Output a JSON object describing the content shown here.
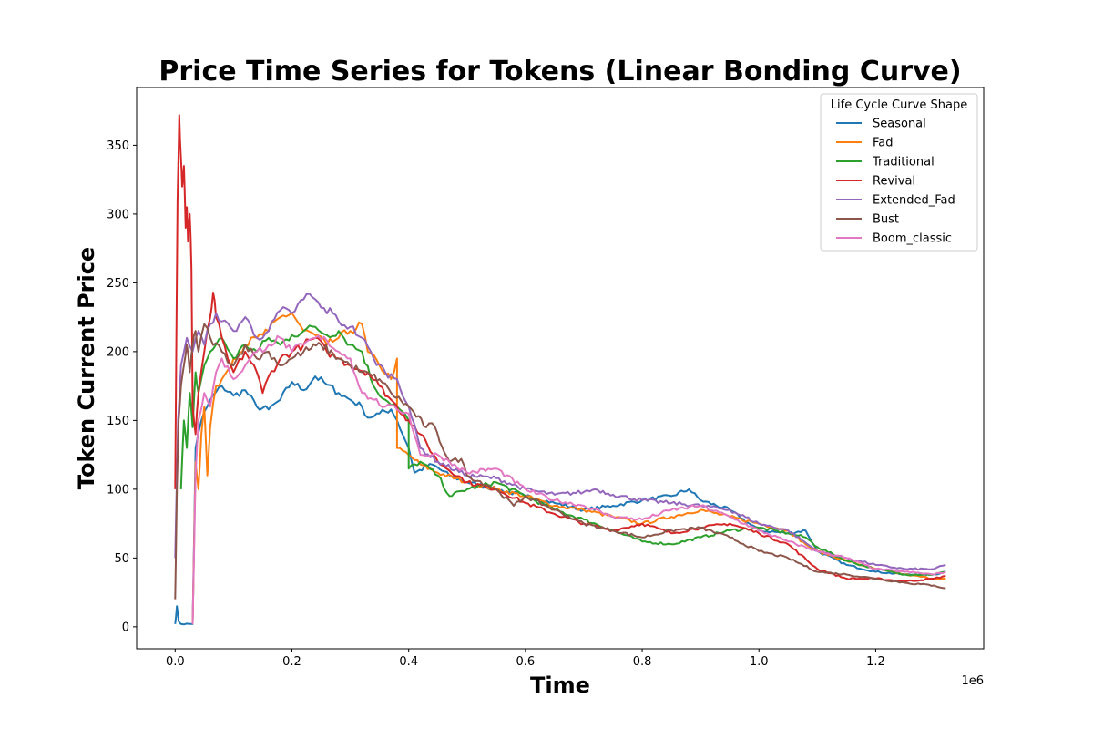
{
  "chart_data": {
    "type": "line",
    "title": "Price Time Series for Tokens (Linear Bonding Curve)",
    "xlabel": "Time",
    "ylabel": "Token Current Price",
    "x_offset_label": "1e6",
    "xlim": [
      -0.066,
      1.385
    ],
    "ylim": [
      -16,
      392
    ],
    "xticks": [
      0.0,
      0.2,
      0.4,
      0.6,
      0.8,
      1.0,
      1.2
    ],
    "xtick_labels": [
      "0.0",
      "0.2",
      "0.4",
      "0.6",
      "0.8",
      "1.0",
      "1.2"
    ],
    "yticks": [
      0,
      50,
      100,
      150,
      200,
      250,
      300,
      350
    ],
    "ytick_labels": [
      "0",
      "50",
      "100",
      "150",
      "200",
      "250",
      "300",
      "350"
    ],
    "grid": false,
    "legend": {
      "title": "Life Cycle Curve Shape",
      "placement": "top-right"
    },
    "series": [
      {
        "name": "Seasonal",
        "color": "#1f77b4",
        "x": [
          0.0,
          0.003,
          0.006,
          0.01,
          0.03,
          0.035,
          0.045,
          0.06,
          0.08,
          0.1,
          0.12,
          0.14,
          0.16,
          0.18,
          0.2,
          0.22,
          0.24,
          0.26,
          0.28,
          0.3,
          0.32,
          0.33,
          0.35,
          0.37,
          0.38,
          0.4,
          0.41,
          0.44,
          0.47,
          0.5,
          0.55,
          0.6,
          0.65,
          0.7,
          0.75,
          0.8,
          0.85,
          0.88,
          0.9,
          0.95,
          1.0,
          1.05,
          1.08,
          1.1,
          1.15,
          1.2,
          1.25,
          1.3,
          1.32
        ],
        "y": [
          2,
          15,
          4,
          2,
          2,
          130,
          150,
          165,
          175,
          168,
          172,
          160,
          158,
          165,
          178,
          172,
          182,
          176,
          170,
          165,
          160,
          152,
          155,
          158,
          150,
          130,
          112,
          118,
          110,
          105,
          100,
          95,
          90,
          85,
          88,
          92,
          95,
          100,
          92,
          85,
          70,
          68,
          70,
          55,
          45,
          40,
          38,
          38,
          40
        ]
      },
      {
        "name": "Fad",
        "color": "#ff7f0e",
        "x": [
          0.03,
          0.035,
          0.04,
          0.045,
          0.05,
          0.055,
          0.06,
          0.07,
          0.08,
          0.1,
          0.12,
          0.14,
          0.16,
          0.18,
          0.2,
          0.22,
          0.24,
          0.26,
          0.28,
          0.3,
          0.32,
          0.33,
          0.35,
          0.37,
          0.38,
          0.38,
          0.4,
          0.42,
          0.45,
          0.5,
          0.55,
          0.6,
          0.65,
          0.7,
          0.75,
          0.8,
          0.85,
          0.9,
          0.95,
          1.0,
          1.05,
          1.08,
          1.1,
          1.15,
          1.2,
          1.25,
          1.3,
          1.32
        ],
        "y": [
          2,
          120,
          100,
          140,
          160,
          110,
          145,
          175,
          180,
          195,
          205,
          210,
          215,
          225,
          228,
          215,
          212,
          205,
          210,
          215,
          220,
          200,
          190,
          180,
          195,
          130,
          125,
          118,
          112,
          105,
          100,
          95,
          88,
          85,
          80,
          75,
          80,
          85,
          80,
          75,
          70,
          60,
          55,
          48,
          42,
          38,
          35,
          35
        ]
      },
      {
        "name": "Traditional",
        "color": "#2ca02c",
        "x": [
          0.01,
          0.015,
          0.02,
          0.025,
          0.03,
          0.035,
          0.04,
          0.05,
          0.06,
          0.08,
          0.1,
          0.12,
          0.14,
          0.16,
          0.18,
          0.2,
          0.22,
          0.24,
          0.26,
          0.28,
          0.3,
          0.32,
          0.34,
          0.36,
          0.38,
          0.4,
          0.4,
          0.42,
          0.45,
          0.47,
          0.5,
          0.55,
          0.6,
          0.65,
          0.7,
          0.75,
          0.8,
          0.85,
          0.9,
          0.95,
          1.0,
          1.05,
          1.08,
          1.1,
          1.15,
          1.2,
          1.25,
          1.3,
          1.32
        ],
        "y": [
          100,
          150,
          130,
          170,
          145,
          185,
          170,
          190,
          200,
          210,
          195,
          205,
          200,
          210,
          205,
          212,
          215,
          218,
          212,
          215,
          205,
          200,
          175,
          165,
          160,
          150,
          115,
          120,
          110,
          95,
          100,
          105,
          95,
          85,
          78,
          70,
          62,
          60,
          65,
          70,
          72,
          68,
          65,
          58,
          48,
          42,
          38,
          38,
          40
        ]
      },
      {
        "name": "Revival",
        "color": "#d62728",
        "x": [
          0.0,
          0.004,
          0.007,
          0.01,
          0.012,
          0.015,
          0.018,
          0.02,
          0.022,
          0.025,
          0.028,
          0.03,
          0.035,
          0.04,
          0.05,
          0.06,
          0.065,
          0.07,
          0.08,
          0.09,
          0.1,
          0.12,
          0.14,
          0.15,
          0.16,
          0.18,
          0.2,
          0.22,
          0.24,
          0.26,
          0.28,
          0.3,
          0.33,
          0.35,
          0.37,
          0.4,
          0.42,
          0.45,
          0.5,
          0.55,
          0.6,
          0.65,
          0.7,
          0.75,
          0.8,
          0.85,
          0.9,
          0.95,
          1.0,
          1.05,
          1.1,
          1.15,
          1.2,
          1.25,
          1.3,
          1.32
        ],
        "y": [
          100,
          310,
          372,
          340,
          320,
          335,
          290,
          305,
          280,
          300,
          260,
          160,
          140,
          170,
          200,
          225,
          243,
          225,
          210,
          195,
          185,
          200,
          185,
          170,
          182,
          195,
          200,
          205,
          210,
          200,
          195,
          190,
          185,
          175,
          165,
          150,
          140,
          120,
          105,
          100,
          90,
          82,
          75,
          70,
          75,
          68,
          72,
          75,
          68,
          60,
          42,
          35,
          35,
          33,
          35,
          37
        ]
      },
      {
        "name": "Extended_Fad",
        "color": "#9467bd",
        "x": [
          0.0,
          0.005,
          0.01,
          0.02,
          0.03,
          0.04,
          0.05,
          0.06,
          0.07,
          0.08,
          0.1,
          0.12,
          0.14,
          0.16,
          0.18,
          0.2,
          0.22,
          0.23,
          0.25,
          0.27,
          0.28,
          0.3,
          0.32,
          0.34,
          0.36,
          0.38,
          0.4,
          0.42,
          0.45,
          0.5,
          0.55,
          0.6,
          0.65,
          0.7,
          0.72,
          0.75,
          0.8,
          0.85,
          0.9,
          0.95,
          1.0,
          1.05,
          1.1,
          1.15,
          1.2,
          1.25,
          1.3,
          1.32
        ],
        "y": [
          50,
          150,
          190,
          210,
          200,
          215,
          205,
          220,
          228,
          222,
          215,
          225,
          210,
          215,
          230,
          228,
          238,
          242,
          232,
          228,
          222,
          218,
          210,
          195,
          185,
          180,
          160,
          130,
          120,
          110,
          108,
          100,
          96,
          98,
          100,
          96,
          92,
          90,
          88,
          85,
          75,
          70,
          55,
          50,
          45,
          42,
          42,
          45
        ]
      },
      {
        "name": "Bust",
        "color": "#8c564b",
        "x": [
          0.0,
          0.003,
          0.006,
          0.01,
          0.015,
          0.02,
          0.025,
          0.03,
          0.035,
          0.04,
          0.05,
          0.06,
          0.08,
          0.1,
          0.12,
          0.14,
          0.16,
          0.18,
          0.2,
          0.22,
          0.25,
          0.28,
          0.3,
          0.32,
          0.35,
          0.37,
          0.4,
          0.43,
          0.44,
          0.47,
          0.49,
          0.5,
          0.55,
          0.58,
          0.6,
          0.65,
          0.7,
          0.75,
          0.8,
          0.85,
          0.9,
          0.95,
          1.0,
          1.05,
          1.1,
          1.15,
          1.2,
          1.25,
          1.3,
          1.32
        ],
        "y": [
          20,
          100,
          150,
          175,
          190,
          205,
          185,
          205,
          215,
          200,
          220,
          210,
          200,
          190,
          205,
          195,
          200,
          190,
          195,
          200,
          205,
          195,
          190,
          185,
          180,
          170,
          160,
          145,
          148,
          120,
          122,
          110,
          100,
          88,
          95,
          85,
          75,
          70,
          65,
          70,
          72,
          65,
          55,
          50,
          40,
          38,
          35,
          32,
          30,
          28
        ]
      },
      {
        "name": "Boom_classic",
        "color": "#e377c2",
        "x": [
          0.03,
          0.035,
          0.04,
          0.05,
          0.06,
          0.07,
          0.08,
          0.1,
          0.12,
          0.14,
          0.16,
          0.18,
          0.2,
          0.22,
          0.24,
          0.26,
          0.28,
          0.3,
          0.32,
          0.34,
          0.36,
          0.38,
          0.4,
          0.42,
          0.45,
          0.47,
          0.5,
          0.55,
          0.6,
          0.65,
          0.7,
          0.75,
          0.8,
          0.85,
          0.9,
          0.95,
          1.0,
          1.05,
          1.1,
          1.15,
          1.2,
          1.25,
          1.3,
          1.32
        ],
        "y": [
          2,
          110,
          150,
          170,
          160,
          185,
          195,
          180,
          190,
          200,
          205,
          210,
          200,
          205,
          210,
          208,
          200,
          195,
          170,
          165,
          160,
          158,
          155,
          125,
          125,
          120,
          112,
          115,
          100,
          92,
          88,
          80,
          78,
          85,
          88,
          80,
          70,
          62,
          55,
          50,
          42,
          40,
          38,
          40
        ]
      }
    ]
  }
}
